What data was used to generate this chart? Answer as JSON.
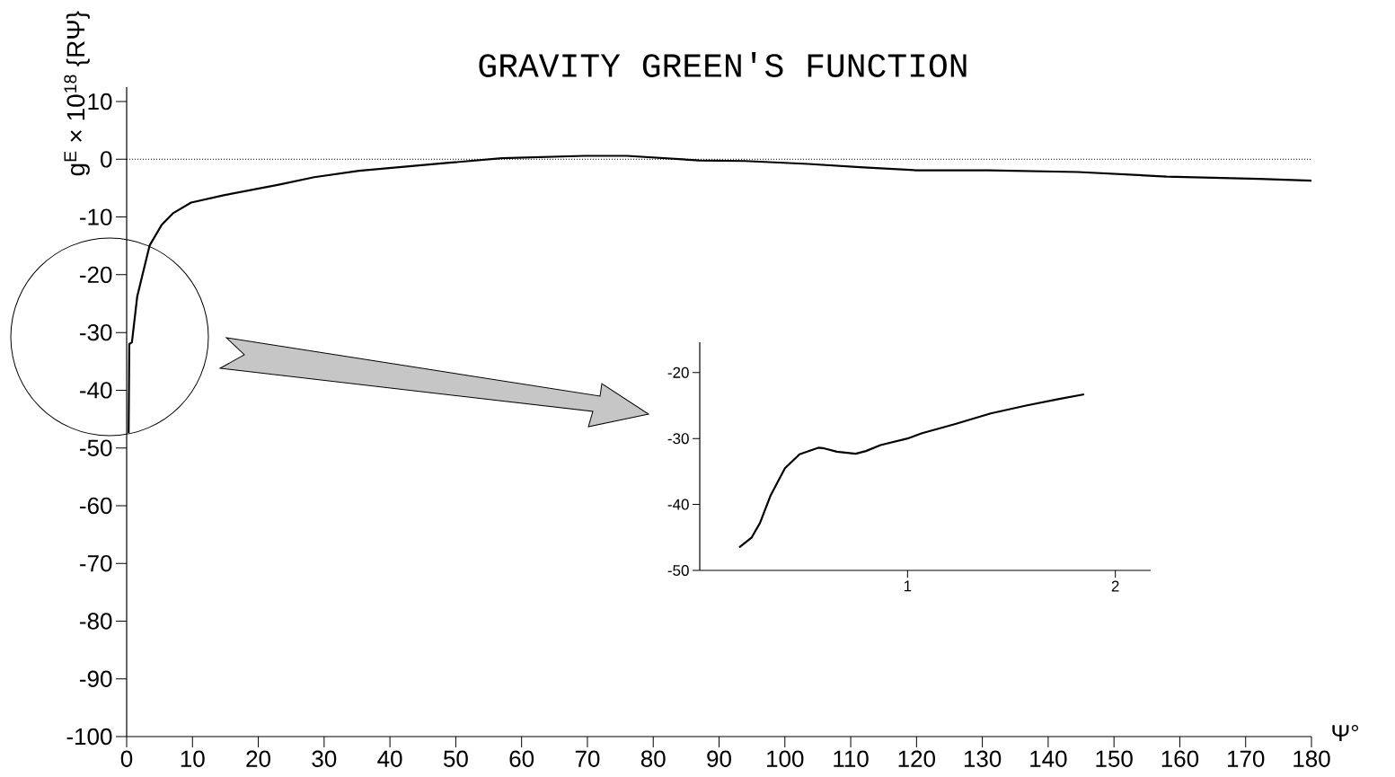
{
  "chart_data": [
    {
      "type": "line",
      "title": "GRAVITY GREEN'S FUNCTION",
      "xlabel": "Ψ°",
      "ylabel": "g$^{E}$ × 10$^{18}$ {RΨ}",
      "xlim": [
        0,
        180
      ],
      "ylim": [
        -100,
        12.5
      ],
      "xticks": [
        0,
        10,
        20,
        30,
        40,
        50,
        60,
        70,
        80,
        90,
        100,
        110,
        120,
        130,
        140,
        150,
        160,
        170,
        180
      ],
      "yticks": [
        -100,
        -90,
        -80,
        -70,
        -60,
        -50,
        -40,
        -30,
        -20,
        -10,
        0,
        10
      ],
      "ref_lines": [
        {
          "axis": "y",
          "value": 0,
          "line_style": "dotted"
        }
      ],
      "series": [
        {
          "color": "#000000",
          "x": [
            0.3,
            0.4,
            0.8,
            1.6,
            2.6,
            3.5,
            5.3,
            7.1,
            9.8,
            14.9,
            23.1,
            28.5,
            35.3,
            49,
            57,
            69.5,
            76,
            87,
            94,
            103.5,
            112,
            120,
            131,
            144.5,
            158,
            172,
            180
          ],
          "values": [
            -47.4,
            -32.0,
            -31.7,
            -23.8,
            -19.1,
            -14.9,
            -11.4,
            -9.3,
            -7.5,
            -6.2,
            -4.4,
            -3.1,
            -2.0,
            -0.6,
            0.2,
            0.6,
            0.6,
            -0.2,
            -0.3,
            -0.8,
            -1.4,
            -1.9,
            -1.9,
            -2.2,
            -3.0,
            -3.4,
            -3.7
          ]
        }
      ]
    },
    {
      "type": "line",
      "xlim": [
        0,
        2.17
      ],
      "ylim": [
        -50,
        -15.4
      ],
      "xticks": [
        1,
        2
      ],
      "yticks": [
        -50,
        -40,
        -30,
        -20
      ],
      "series": [
        {
          "color": "#000000",
          "x": [
            0.19,
            0.25,
            0.29,
            0.34,
            0.41,
            0.48,
            0.57,
            0.6,
            0.66,
            0.75,
            0.8,
            0.87,
            1.0,
            1.07,
            1.23,
            1.4,
            1.57,
            1.73,
            1.85
          ],
          "values": [
            -46.5,
            -45.0,
            -42.8,
            -38.7,
            -34.5,
            -32.4,
            -31.4,
            -31.5,
            -32.0,
            -32.3,
            -31.9,
            -31.0,
            -30.0,
            -29.2,
            -27.8,
            -26.2,
            -25.0,
            -24.0,
            -23.3
          ]
        }
      ]
    }
  ]
}
